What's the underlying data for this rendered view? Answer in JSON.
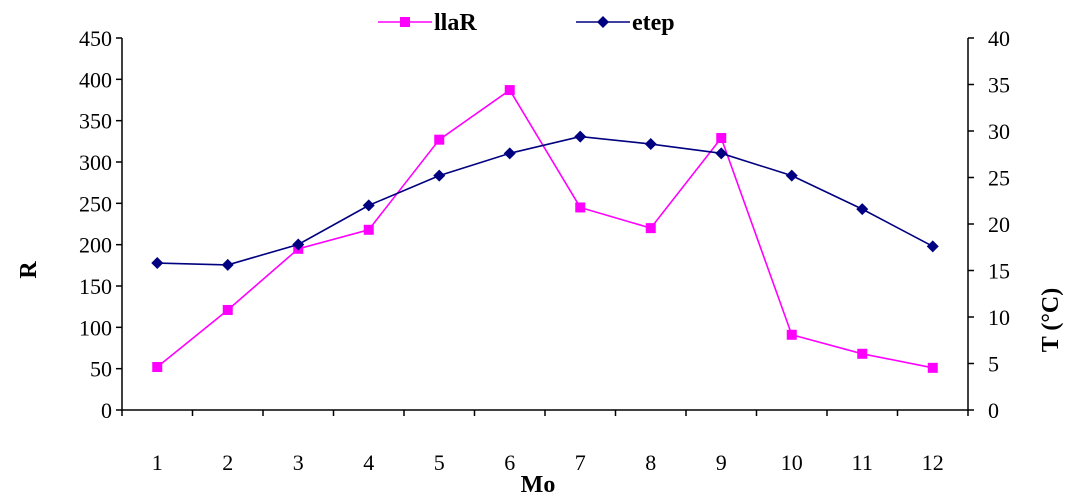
{
  "chart_data": {
    "type": "line",
    "title": "",
    "xlabel": "Mo",
    "ylabel_left": "R",
    "ylabel_right": "T (°C)",
    "ylabel_right_unit": "°C)",
    "x": [
      "1",
      "2",
      "3",
      "4",
      "5",
      "6",
      "7",
      "8",
      "9",
      "10",
      "11",
      "12"
    ],
    "ylim_left": [
      0,
      450
    ],
    "yticks_left": [
      0,
      50,
      100,
      150,
      200,
      250,
      300,
      350,
      400,
      450
    ],
    "ylim_right": [
      0,
      40
    ],
    "yticks_right": [
      0,
      5,
      10,
      15,
      20,
      25,
      30,
      35,
      40
    ],
    "grid": false,
    "legend_position": "top",
    "series": [
      {
        "name": "llaR",
        "axis": "left",
        "color": "#ff00ff",
        "marker": "square",
        "values": [
          52,
          121,
          195,
          218,
          327,
          387,
          245,
          220,
          329,
          91,
          68,
          51
        ]
      },
      {
        "name": "etep",
        "axis": "right",
        "color": "#000080",
        "marker": "diamond",
        "values": [
          15.8,
          15.6,
          17.8,
          22.0,
          25.2,
          27.6,
          29.4,
          28.6,
          27.6,
          25.2,
          21.6,
          17.6
        ]
      }
    ]
  }
}
